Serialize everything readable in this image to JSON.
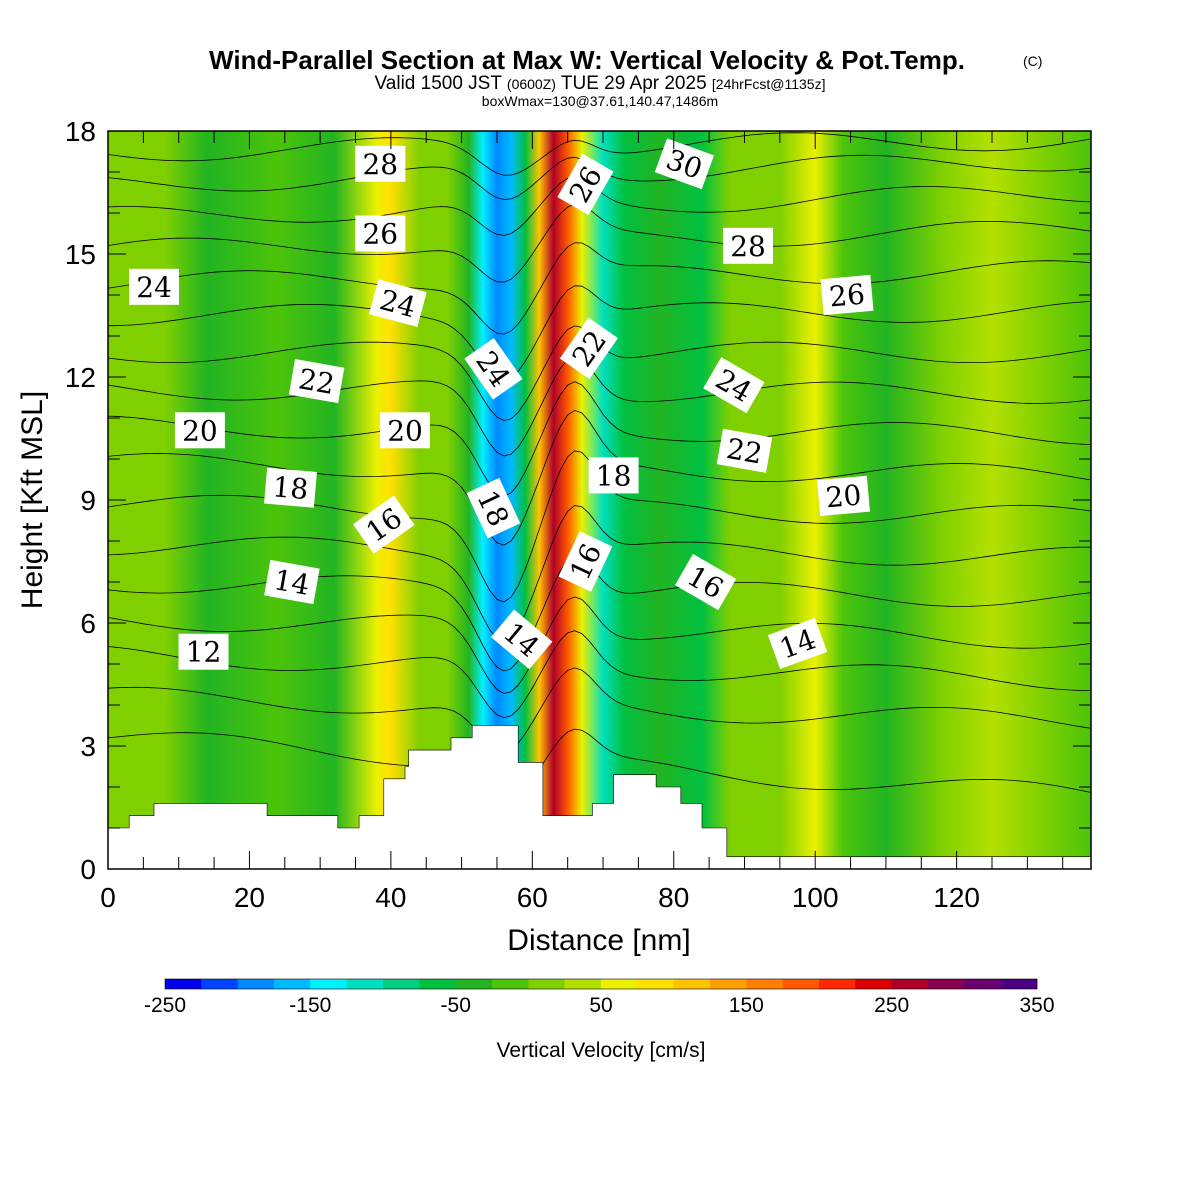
{
  "title": {
    "main": "Wind-Parallel Section at Max W: Vertical Velocity & Pot.Temp.",
    "copyright": "(C)",
    "valid_prefix": "Valid 1500 JST",
    "valid_utc": "(0600Z)",
    "valid_date": "TUE 29 Apr 2025",
    "forecast": "[24hrFcst@1135z]",
    "boxinfo": "boxWmax=130@37.61,140.47,1486m"
  },
  "chart_data": {
    "type": "heatmap",
    "xlabel": "Distance [nm]",
    "ylabel": "Height [Kft MSL]",
    "xlim": [
      0,
      139
    ],
    "ylim": [
      0,
      18
    ],
    "x_ticks": [
      0,
      20,
      40,
      60,
      80,
      100,
      120
    ],
    "y_ticks": [
      0,
      3,
      6,
      9,
      12,
      15,
      18
    ],
    "colorbar": {
      "title": "Vertical Velocity [cm/s]",
      "range": [
        -250,
        350
      ],
      "tick_values": [
        -250,
        -150,
        -50,
        50,
        150,
        250,
        350
      ],
      "colors": [
        "#0000ee",
        "#0044ff",
        "#0088ff",
        "#00bbff",
        "#00f0ff",
        "#00e0c0",
        "#00d080",
        "#00c040",
        "#22b422",
        "#4cc40a",
        "#80d000",
        "#b4e000",
        "#ecf000",
        "#ffe000",
        "#ffc400",
        "#ffa000",
        "#ff8000",
        "#ff5800",
        "#ff2800",
        "#dd0000",
        "#b00028",
        "#8a0050",
        "#6a0070",
        "#4a0080"
      ]
    },
    "wind_speed_note": "",
    "vertical_velocity_bands": [
      {
        "x": 0,
        "w": 8
      },
      {
        "x": 8,
        "w": 8
      },
      {
        "x": 14,
        "w": -30
      },
      {
        "x": 24,
        "w": -10
      },
      {
        "x": 32,
        "w": -40
      },
      {
        "x": 38,
        "w": 50
      },
      {
        "x": 40,
        "w": 80
      },
      {
        "x": 44,
        "w": 20
      },
      {
        "x": 48,
        "w": 0
      },
      {
        "x": 51,
        "w": -40
      },
      {
        "x": 53,
        "w": -130
      },
      {
        "x": 55,
        "w": -190
      },
      {
        "x": 57,
        "w": -170
      },
      {
        "x": 59,
        "w": -60
      },
      {
        "x": 61,
        "w": 120
      },
      {
        "x": 63,
        "w": 270
      },
      {
        "x": 65,
        "w": 180
      },
      {
        "x": 67,
        "w": 60
      },
      {
        "x": 70,
        "w": -110
      },
      {
        "x": 73,
        "w": -60
      },
      {
        "x": 78,
        "w": -30
      },
      {
        "x": 84,
        "w": -60
      },
      {
        "x": 88,
        "w": 0
      },
      {
        "x": 95,
        "w": 20
      },
      {
        "x": 100,
        "w": 50
      },
      {
        "x": 104,
        "w": -20
      },
      {
        "x": 110,
        "w": -35
      },
      {
        "x": 118,
        "w": 10
      },
      {
        "x": 125,
        "w": 40
      },
      {
        "x": 132,
        "w": 10
      },
      {
        "x": 139,
        "w": -10
      }
    ],
    "terrain_kft": [
      {
        "x": 0,
        "h": 1.0
      },
      {
        "x": 3,
        "h": 1.3
      },
      {
        "x": 6.5,
        "h": 1.6
      },
      {
        "x": 22.5,
        "h": 1.3
      },
      {
        "x": 32.5,
        "h": 1.0
      },
      {
        "x": 35.5,
        "h": 1.3
      },
      {
        "x": 39,
        "h": 2.2
      },
      {
        "x": 42,
        "h": 2.5
      },
      {
        "x": 42.5,
        "h": 2.9
      },
      {
        "x": 48.5,
        "h": 3.2
      },
      {
        "x": 51.5,
        "h": 3.5
      },
      {
        "x": 58,
        "h": 2.6
      },
      {
        "x": 61.5,
        "h": 1.3
      },
      {
        "x": 68.5,
        "h": 1.6
      },
      {
        "x": 71.5,
        "h": 2.3
      },
      {
        "x": 77.5,
        "h": 2.0
      },
      {
        "x": 81,
        "h": 1.6
      },
      {
        "x": 84,
        "h": 1.0
      },
      {
        "x": 87.5,
        "h": 0.3
      },
      {
        "x": 139,
        "h": 0.3
      }
    ],
    "theta_labels": [
      {
        "text": "28",
        "x": 38.5,
        "y": 17.2,
        "rot": 0
      },
      {
        "text": "26",
        "x": 38.5,
        "y": 15.5,
        "rot": 0
      },
      {
        "text": "24",
        "x": 6.5,
        "y": 14.2,
        "rot": 0
      },
      {
        "text": "24",
        "x": 41,
        "y": 13.8,
        "rot": 15
      },
      {
        "text": "22",
        "x": 29.5,
        "y": 11.9,
        "rot": 10
      },
      {
        "text": "20",
        "x": 13,
        "y": 10.7,
        "rot": 0
      },
      {
        "text": "20",
        "x": 42,
        "y": 10.7,
        "rot": 0
      },
      {
        "text": "18",
        "x": 25.8,
        "y": 9.3,
        "rot": 5
      },
      {
        "text": "16",
        "x": 39,
        "y": 8.4,
        "rot": -35
      },
      {
        "text": "14",
        "x": 26,
        "y": 7.0,
        "rot": 10
      },
      {
        "text": "12",
        "x": 13.5,
        "y": 5.3,
        "rot": 0
      },
      {
        "text": "24",
        "x": 54.5,
        "y": 12.2,
        "rot": 55
      },
      {
        "text": "18",
        "x": 54.5,
        "y": 8.8,
        "rot": 65
      },
      {
        "text": "14",
        "x": 58.5,
        "y": 5.6,
        "rot": 40
      },
      {
        "text": "26",
        "x": 67.5,
        "y": 16.7,
        "rot": -60
      },
      {
        "text": "22",
        "x": 68,
        "y": 12.7,
        "rot": -55
      },
      {
        "text": "18",
        "x": 71.5,
        "y": 9.6,
        "rot": 0
      },
      {
        "text": "16",
        "x": 67.5,
        "y": 7.5,
        "rot": -65
      },
      {
        "text": "30",
        "x": 81.5,
        "y": 17.2,
        "rot": 20
      },
      {
        "text": "28",
        "x": 90.5,
        "y": 15.2,
        "rot": 0
      },
      {
        "text": "26",
        "x": 104.5,
        "y": 14.0,
        "rot": -5
      },
      {
        "text": "24",
        "x": 88.5,
        "y": 11.8,
        "rot": 30
      },
      {
        "text": "22",
        "x": 90,
        "y": 10.2,
        "rot": 10
      },
      {
        "text": "20",
        "x": 104,
        "y": 9.1,
        "rot": -5
      },
      {
        "text": "16",
        "x": 84.5,
        "y": 7.0,
        "rot": 30
      },
      {
        "text": "14",
        "x": 97.5,
        "y": 5.5,
        "rot": -20
      }
    ],
    "theta_levels_kft": {
      "left": [
        3.2,
        4.2,
        5.2,
        6.1,
        7.0,
        7.9,
        8.9,
        9.9,
        10.8,
        11.7,
        12.6,
        13.5,
        14.3,
        15.1,
        15.9,
        16.7,
        17.5
      ],
      "right": [
        1.8,
        3.6,
        4.6,
        5.6,
        6.6,
        7.6,
        8.6,
        9.6,
        10.6,
        11.6,
        12.6,
        13.6,
        14.6,
        15.6,
        16.5,
        17.3,
        17.8
      ]
    }
  }
}
